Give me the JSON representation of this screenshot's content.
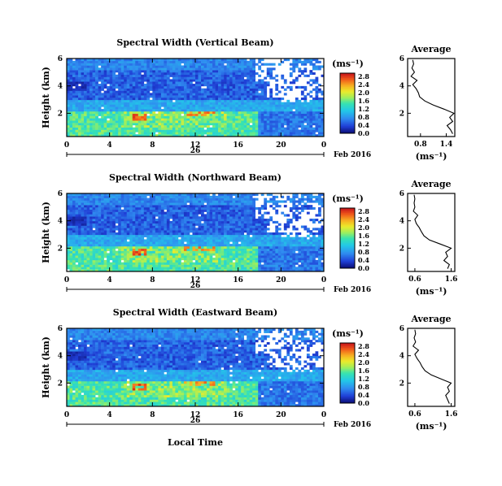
{
  "figure": {
    "date_label": "Feb 2016",
    "xlabel": "Local Time",
    "colorbar_unit": "(ms⁻¹)",
    "avg_title": "Average",
    "avg_xlabel": "(ms⁻¹)"
  },
  "chart_data": [
    {
      "type": "heatmap",
      "title": "Spectral Width (Vertical Beam)",
      "ylabel": "Height (km)",
      "xlabel": "Local Time",
      "x_ticks": [
        "0",
        "4",
        "8",
        "12",
        "16",
        "20",
        "0"
      ],
      "xlim": [
        0,
        24
      ],
      "y_ticks": [
        "2",
        "4",
        "6"
      ],
      "ylim": [
        0.3,
        6
      ],
      "day_label": "26",
      "date_label": "Feb 2016",
      "colorbar": {
        "unit": "(ms⁻¹)",
        "ticks": [
          "0.0",
          "0.4",
          "0.8",
          "1.2",
          "1.6",
          "2.0",
          "2.4",
          "2.8"
        ],
        "range": [
          0,
          3.0
        ]
      },
      "average_profile": {
        "title": "Average",
        "xlabel": "(ms⁻¹)",
        "x_ticks": [
          "0.8",
          "1.4"
        ],
        "xlim": [
          0.5,
          1.6
        ],
        "y_ticks": [
          "2",
          "4",
          "6"
        ],
        "ylim": [
          0.3,
          6
        ],
        "height_km": [
          0.5,
          0.8,
          1.1,
          1.4,
          1.7,
          2.0,
          2.3,
          2.6,
          2.9,
          3.2,
          3.5,
          3.8,
          4.1,
          4.4,
          4.7,
          5.0,
          5.3,
          5.6,
          5.9
        ],
        "value": [
          1.55,
          1.5,
          1.42,
          1.55,
          1.48,
          1.58,
          1.35,
          1.1,
          0.9,
          0.78,
          0.75,
          0.7,
          0.62,
          0.72,
          0.58,
          0.66,
          0.6,
          0.64,
          0.62
        ]
      }
    },
    {
      "type": "heatmap",
      "title": "Spectral Width (Northward Beam)",
      "ylabel": "Height (km)",
      "xlabel": "Local Time",
      "x_ticks": [
        "0",
        "4",
        "8",
        "12",
        "16",
        "20",
        "0"
      ],
      "xlim": [
        0,
        24
      ],
      "y_ticks": [
        "2",
        "4",
        "6"
      ],
      "ylim": [
        0.3,
        6
      ],
      "day_label": "26",
      "date_label": "Feb 2016",
      "colorbar": {
        "unit": "(ms⁻¹)",
        "ticks": [
          "0.0",
          "0.4",
          "0.8",
          "1.2",
          "1.6",
          "2.0",
          "2.4",
          "2.8"
        ],
        "range": [
          0,
          3.0
        ]
      },
      "average_profile": {
        "title": "Average",
        "xlabel": "(ms⁻¹)",
        "x_ticks": [
          "0.6",
          "1.6"
        ],
        "xlim": [
          0.4,
          1.7
        ],
        "y_ticks": [
          "2",
          "4",
          "6"
        ],
        "ylim": [
          0.3,
          6
        ],
        "height_km": [
          0.5,
          0.8,
          1.1,
          1.4,
          1.7,
          2.0,
          2.3,
          2.6,
          2.9,
          3.2,
          3.5,
          3.8,
          4.1,
          4.4,
          4.7,
          5.0,
          5.3,
          5.6,
          5.9
        ],
        "value": [
          1.5,
          1.55,
          1.4,
          1.5,
          1.45,
          1.6,
          1.3,
          1.0,
          0.85,
          0.78,
          0.72,
          0.64,
          0.6,
          0.68,
          0.56,
          0.6,
          0.58,
          0.6,
          0.58
        ]
      }
    },
    {
      "type": "heatmap",
      "title": "Spectral Width (Eastward Beam)",
      "ylabel": "Height (km)",
      "xlabel": "Local Time",
      "x_ticks": [
        "0",
        "4",
        "8",
        "12",
        "16",
        "20",
        "0"
      ],
      "xlim": [
        0,
        24
      ],
      "y_ticks": [
        "2",
        "4",
        "6"
      ],
      "ylim": [
        0.3,
        6
      ],
      "day_label": "26",
      "date_label": "Feb 2016",
      "colorbar": {
        "unit": "(ms⁻¹)",
        "ticks": [
          "0.0",
          "0.4",
          "0.8",
          "1.2",
          "1.6",
          "2.0",
          "2.4",
          "2.8"
        ],
        "range": [
          0,
          3.0
        ]
      },
      "average_profile": {
        "title": "Average",
        "xlabel": "(ms⁻¹)",
        "x_ticks": [
          "0.6",
          "1.6"
        ],
        "xlim": [
          0.4,
          1.7
        ],
        "y_ticks": [
          "2",
          "4",
          "6"
        ],
        "ylim": [
          0.3,
          6
        ],
        "height_km": [
          0.5,
          0.8,
          1.1,
          1.4,
          1.7,
          2.0,
          2.3,
          2.6,
          2.9,
          3.2,
          3.5,
          3.8,
          4.1,
          4.4,
          4.7,
          5.0,
          5.3,
          5.6,
          5.9
        ],
        "value": [
          1.55,
          1.5,
          1.45,
          1.55,
          1.5,
          1.6,
          1.32,
          1.05,
          0.88,
          0.8,
          0.74,
          0.66,
          0.6,
          0.7,
          0.55,
          0.62,
          0.58,
          0.62,
          0.6
        ]
      }
    }
  ]
}
